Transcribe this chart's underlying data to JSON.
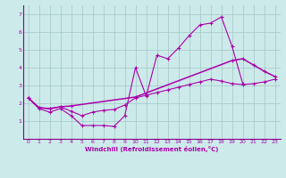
{
  "xlabel": "Windchill (Refroidissement éolien,°C)",
  "bg_color": "#cceaea",
  "grid_color": "#aacccc",
  "line_color": "#aa00aa",
  "spine_color": "#880088",
  "xlim": [
    -0.5,
    23.5
  ],
  "ylim": [
    0,
    7.5
  ],
  "yticks": [
    1,
    2,
    3,
    4,
    5,
    6,
    7
  ],
  "xticks": [
    0,
    1,
    2,
    3,
    4,
    5,
    6,
    7,
    8,
    9,
    10,
    11,
    12,
    13,
    14,
    15,
    16,
    17,
    18,
    19,
    20,
    21,
    22,
    23
  ],
  "series1_x": [
    0,
    1,
    2,
    3,
    4,
    5,
    6,
    7,
    8,
    9,
    10,
    11,
    12,
    13,
    14,
    15,
    16,
    17,
    18,
    19,
    20,
    21,
    22,
    23
  ],
  "series1_y": [
    2.3,
    1.7,
    1.5,
    1.7,
    1.3,
    0.75,
    0.75,
    0.75,
    0.7,
    1.3,
    4.0,
    2.4,
    4.7,
    4.5,
    5.1,
    5.8,
    6.4,
    6.5,
    6.85,
    5.2,
    3.1,
    null,
    null,
    null
  ],
  "series2_x": [
    0,
    1,
    2,
    3,
    4,
    5,
    6,
    7,
    8,
    9,
    10,
    11,
    12,
    13,
    14,
    15,
    16,
    17,
    18,
    19,
    20,
    21,
    22,
    23
  ],
  "series2_y": [
    2.3,
    1.75,
    1.7,
    1.8,
    1.55,
    1.3,
    1.5,
    1.6,
    1.65,
    1.9,
    2.3,
    2.45,
    2.6,
    2.75,
    2.9,
    3.05,
    3.2,
    3.35,
    3.25,
    3.1,
    3.05,
    3.1,
    3.2,
    3.35
  ],
  "series3_x": [
    0,
    1,
    2,
    3,
    4,
    10,
    19,
    20,
    21,
    22,
    23
  ],
  "series3_y": [
    2.3,
    1.75,
    1.7,
    1.8,
    1.85,
    2.35,
    4.4,
    4.5,
    4.15,
    3.8,
    3.5
  ]
}
